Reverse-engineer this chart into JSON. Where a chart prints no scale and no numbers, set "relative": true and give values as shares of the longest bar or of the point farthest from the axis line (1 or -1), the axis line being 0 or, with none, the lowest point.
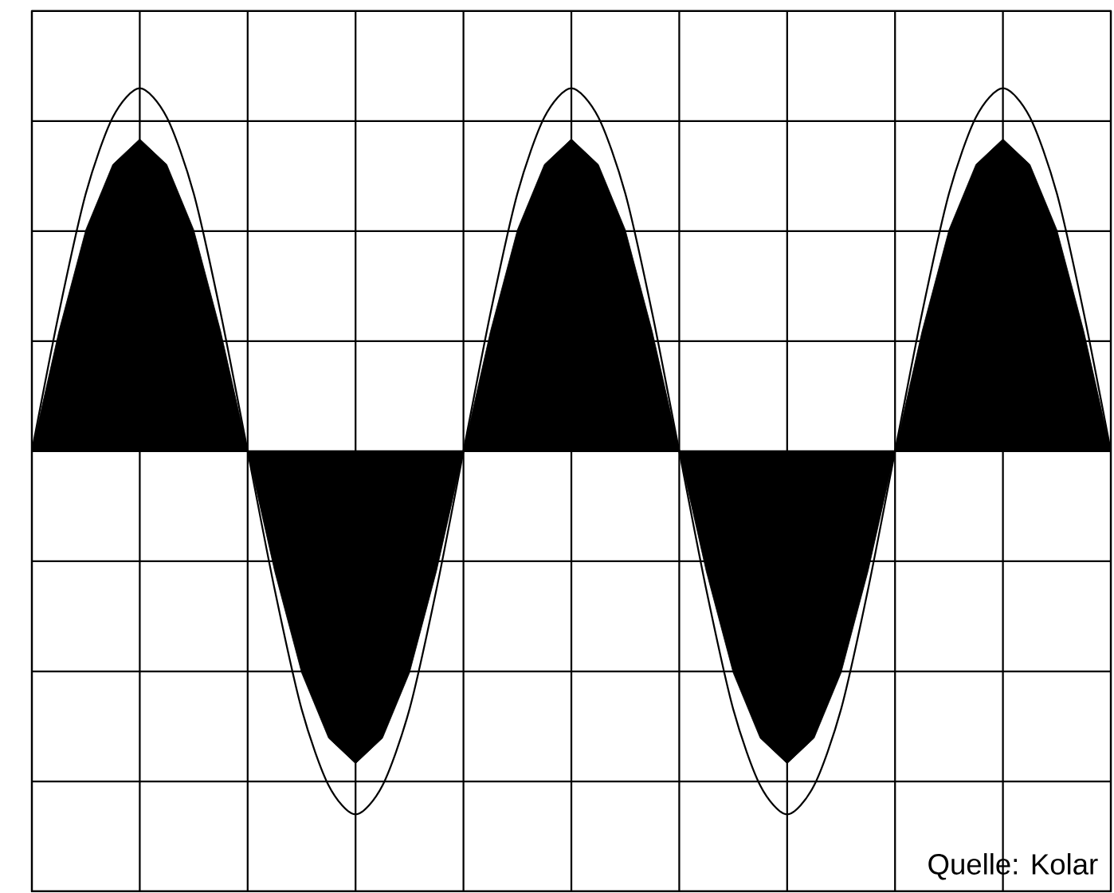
{
  "chart_data": {
    "type": "line",
    "relative": true,
    "grid": true,
    "tick_labels": false,
    "categories": [
      null,
      null,
      null,
      null,
      null,
      null,
      null,
      null,
      null,
      null,
      null,
      null,
      null,
      null,
      null,
      null,
      null,
      null,
      null,
      null,
      null,
      null,
      null,
      null,
      null,
      null,
      null,
      null,
      null,
      null,
      null,
      null,
      null,
      null,
      null,
      null,
      null,
      null,
      null,
      null,
      null
    ],
    "series": [
      {
        "type": "area",
        "color": "#000000",
        "values": [
          0,
          0.33,
          0.61,
          0.79,
          0.86,
          0.79,
          0.61,
          0.33,
          0,
          -0.33,
          -0.61,
          -0.79,
          -0.86,
          -0.79,
          -0.61,
          -0.33,
          0,
          0.33,
          0.61,
          0.79,
          0.86,
          0.79,
          0.61,
          0.33,
          0,
          -0.33,
          -0.61,
          -0.79,
          -0.86,
          -0.79,
          -0.61,
          -0.33,
          0,
          0.33,
          0.61,
          0.79,
          0.86,
          0.79,
          0.61,
          0.33,
          0
        ]
      },
      {
        "color": "#000000",
        "values": [
          0,
          0.38,
          0.71,
          0.92,
          1,
          0.92,
          0.71,
          0.38,
          0,
          -0.38,
          -0.71,
          -0.92,
          -1,
          -0.92,
          -0.71,
          -0.38,
          0,
          0.38,
          0.71,
          0.92,
          1,
          0.92,
          0.71,
          0.38,
          0,
          -0.38,
          -0.71,
          -0.92,
          -1,
          -0.92,
          -0.71,
          -0.38,
          0,
          0.38,
          0.71,
          0.92,
          1,
          0.92,
          0.71,
          0.38,
          0
        ]
      }
    ],
    "annotations": [
      "Quelle: Kolar"
    ]
  }
}
